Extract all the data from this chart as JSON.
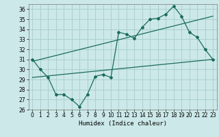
{
  "title": "",
  "xlabel": "Humidex (Indice chaleur)",
  "ylabel": "",
  "background_color": "#cce8e8",
  "grid_color": "#aad0d0",
  "line_color": "#1a6b5a",
  "xlim": [
    -0.5,
    23.5
  ],
  "ylim": [
    26,
    36.5
  ],
  "xticks": [
    0,
    1,
    2,
    3,
    4,
    5,
    6,
    7,
    8,
    9,
    10,
    11,
    12,
    13,
    14,
    15,
    16,
    17,
    18,
    19,
    20,
    21,
    22,
    23
  ],
  "yticks": [
    26,
    27,
    28,
    29,
    30,
    31,
    32,
    33,
    34,
    35,
    36
  ],
  "line1_x": [
    0,
    1,
    2,
    3,
    4,
    5,
    6,
    7,
    8,
    9,
    10,
    11,
    12,
    13,
    14,
    15,
    16,
    17,
    18,
    19,
    20,
    21,
    22,
    23
  ],
  "line1_y": [
    31,
    30,
    29.2,
    27.5,
    27.5,
    27,
    26.3,
    27.5,
    29.3,
    29.5,
    29.2,
    33.7,
    33.5,
    33.1,
    34.2,
    35.0,
    35.1,
    35.5,
    36.3,
    35.3,
    33.7,
    33.2,
    32.0,
    31.0
  ],
  "line2_x": [
    0,
    23
  ],
  "line2_y": [
    30.8,
    35.3
  ],
  "line3_x": [
    0,
    23
  ],
  "line3_y": [
    29.2,
    31.0
  ]
}
